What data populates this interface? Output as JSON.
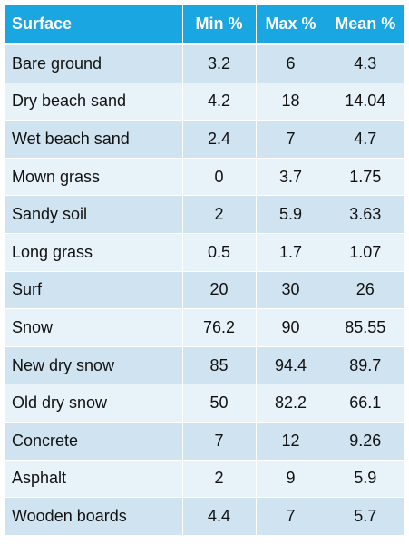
{
  "table": {
    "headers": [
      "Surface",
      "Min %",
      "Max %",
      "Mean %"
    ],
    "rows": [
      [
        "Bare ground",
        "3.2",
        "6",
        "4.3"
      ],
      [
        "Dry beach sand",
        "4.2",
        "18",
        "14.04"
      ],
      [
        "Wet beach sand",
        "2.4",
        "7",
        "4.7"
      ],
      [
        "Mown grass",
        "0",
        "3.7",
        "1.75"
      ],
      [
        "Sandy soil",
        "2",
        "5.9",
        "3.63"
      ],
      [
        "Long grass",
        "0.5",
        "1.7",
        "1.07"
      ],
      [
        "Surf",
        "20",
        "30",
        "26"
      ],
      [
        "Snow",
        "76.2",
        "90",
        "85.55"
      ],
      [
        "New dry snow",
        "85",
        "94.4",
        "89.7"
      ],
      [
        "Old dry snow",
        "50",
        "82.2",
        "66.1"
      ],
      [
        "Concrete",
        "7",
        "12",
        "9.26"
      ],
      [
        "Asphalt",
        "2",
        "9",
        "5.9"
      ],
      [
        "Wooden boards",
        "4.4",
        "7",
        "5.7"
      ]
    ],
    "colors": {
      "header_bg": "#1aa6e0",
      "header_text": "#ffffff",
      "row_dark": "#cfe3f0",
      "row_light": "#e8f2f9"
    }
  }
}
